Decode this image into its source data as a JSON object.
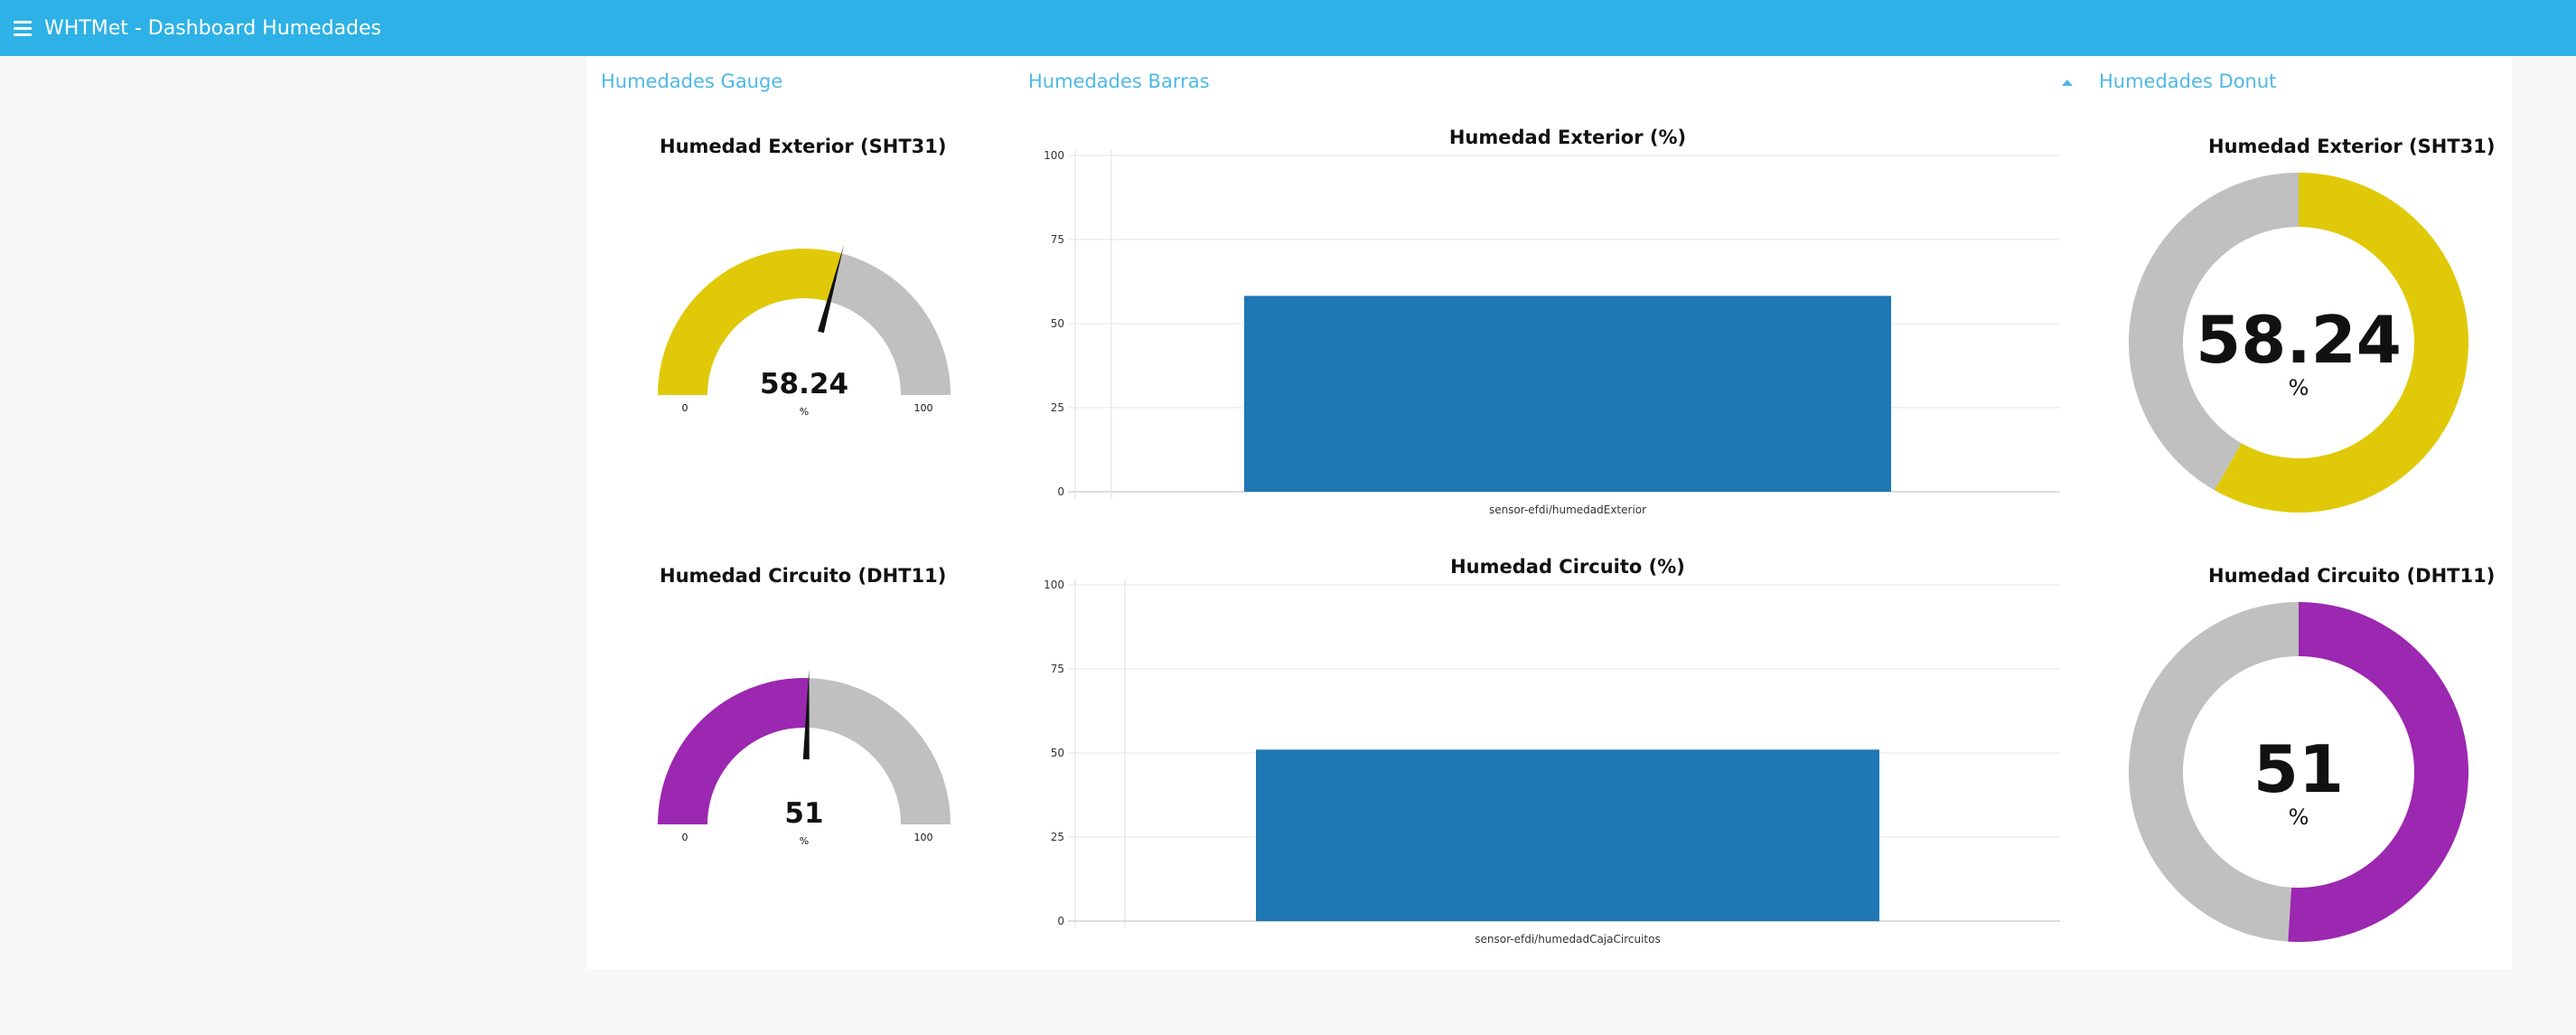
{
  "app": {
    "title": "WHTMet - Dashboard Humedades",
    "menu_icon": "hamburger-menu-icon"
  },
  "groups": {
    "gauge": "Humedades Gauge",
    "bars": "Humedades Barras",
    "donut": "Humedades Donut"
  },
  "colors": {
    "header": "#2db1e6",
    "group_title": "#4fb8e6",
    "exterior": "#e0c909",
    "circuito": "#9c27b0",
    "track": "#c0c0c0",
    "bar": "#1f77b4"
  },
  "gauges": [
    {
      "title": "Humedad Exterior (SHT31)",
      "value": "58.24",
      "fraction": 0.5824,
      "min": "0",
      "max": "100",
      "unit": "%",
      "color": "#e0c909"
    },
    {
      "title": "Humedad Circuito (DHT11)",
      "value": "51",
      "fraction": 0.51,
      "min": "0",
      "max": "100",
      "unit": "%",
      "color": "#9c27b0"
    }
  ],
  "donuts": [
    {
      "title": "Humedad Exterior (SHT31)",
      "value": "58.24",
      "fraction": 0.5824,
      "unit": "%",
      "color": "#e0c909"
    },
    {
      "title": "Humedad Circuito (DHT11)",
      "value": "51",
      "fraction": 0.51,
      "unit": "%",
      "color": "#9c27b0"
    }
  ],
  "chart_data": [
    {
      "type": "bar",
      "title": "Humedad Exterior (%)",
      "categories": [
        "sensor-efdi/humedadExterior"
      ],
      "values": [
        58.24
      ],
      "ylim": [
        0,
        100
      ],
      "yticks": [
        "0",
        "25",
        "50",
        "75",
        "100"
      ],
      "grid": true,
      "color": "#1f77b4"
    },
    {
      "type": "bar",
      "title": "Humedad Circuito (%)",
      "categories": [
        "sensor-efdi/humedadCajaCircuitos"
      ],
      "values": [
        51
      ],
      "ylim": [
        0,
        100
      ],
      "yticks": [
        "0",
        "25",
        "50",
        "75",
        "100"
      ],
      "grid": true,
      "color": "#1f77b4"
    }
  ]
}
